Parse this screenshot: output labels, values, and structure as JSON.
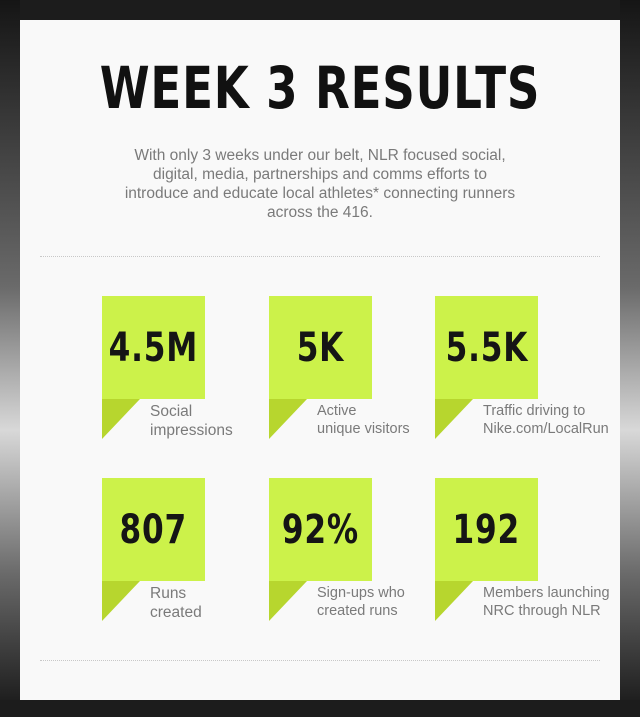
{
  "title": "WEEK 3 RESULTS",
  "intro": "With only 3 weeks under our belt, NLR focused social, digital, media, partnerships and comms efforts to introduce and educate local athletes* connecting runners across the 416.",
  "stats": [
    {
      "value": "4.5M",
      "label": "Social\nimpressions"
    },
    {
      "value": "5K",
      "label": "Active\nunique visitors"
    },
    {
      "value": "5.5K",
      "label": "Traffic driving to\nNike.com/LocalRun"
    },
    {
      "value": "807",
      "label": "Runs\ncreated"
    },
    {
      "value": "92%",
      "label": "Sign-ups who\ncreated runs"
    },
    {
      "value": "192",
      "label": "Members launching\nNRC through NLR"
    }
  ],
  "colors": {
    "accent": "#ccf24a",
    "accent_dark": "#b7d62e",
    "text": "#7a7a7a",
    "title": "#111111"
  }
}
